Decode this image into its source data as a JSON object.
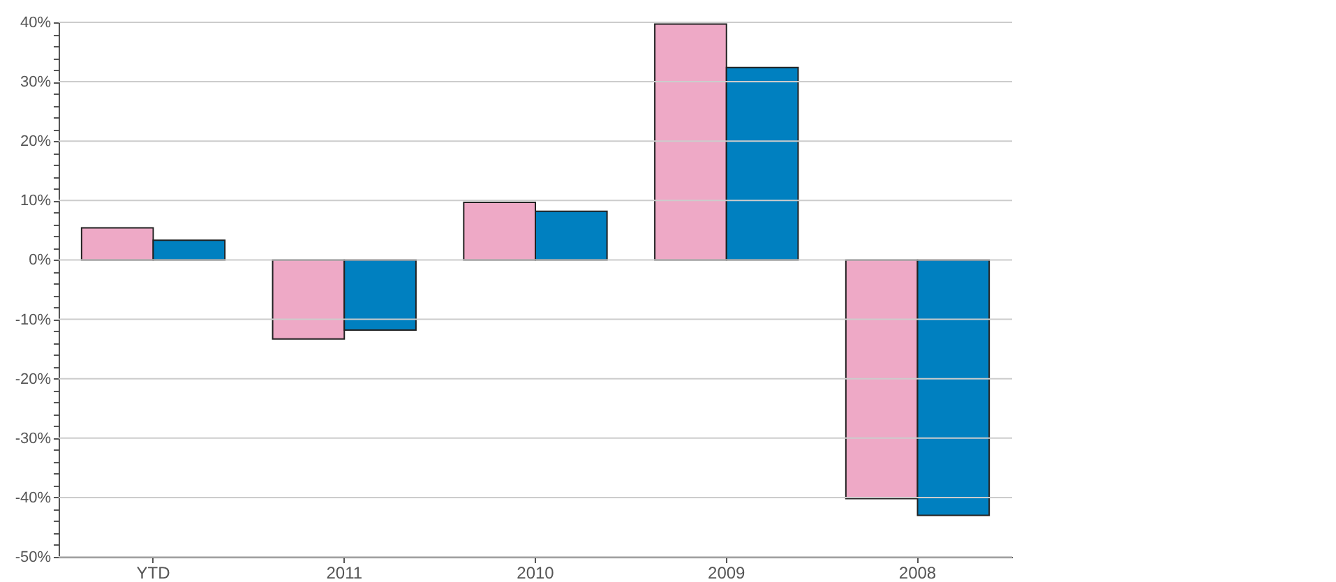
{
  "chart_data": {
    "type": "bar",
    "categories": [
      "YTD",
      "2011",
      "2010",
      "2009",
      "2008"
    ],
    "series": [
      {
        "color": "#eea9c6",
        "values": [
          5.4,
          -13.3,
          9.7,
          39.7,
          -40.2
        ]
      },
      {
        "color": "#0080c0",
        "values": [
          3.3,
          -11.8,
          8.2,
          32.4,
          -43.0
        ]
      }
    ],
    "ylim": [
      -50,
      40
    ],
    "yticks": [
      {
        "value": -50,
        "label": "-50%"
      },
      {
        "value": -48,
        "label": null
      },
      {
        "value": -46,
        "label": null
      },
      {
        "value": -44,
        "label": null
      },
      {
        "value": -42,
        "label": null
      },
      {
        "value": -40,
        "label": "-40%"
      },
      {
        "value": -38,
        "label": null
      },
      {
        "value": -36,
        "label": null
      },
      {
        "value": -34,
        "label": null
      },
      {
        "value": -32,
        "label": null
      },
      {
        "value": -30,
        "label": "-30%"
      },
      {
        "value": -28,
        "label": null
      },
      {
        "value": -26,
        "label": null
      },
      {
        "value": -24,
        "label": null
      },
      {
        "value": -22,
        "label": null
      },
      {
        "value": -20,
        "label": "-20%"
      },
      {
        "value": -18,
        "label": null
      },
      {
        "value": -16,
        "label": null
      },
      {
        "value": -14,
        "label": null
      },
      {
        "value": -12,
        "label": null
      },
      {
        "value": -10,
        "label": "-10%"
      },
      {
        "value": -8,
        "label": null
      },
      {
        "value": -6,
        "label": null
      },
      {
        "value": -4,
        "label": null
      },
      {
        "value": -2,
        "label": null
      },
      {
        "value": 0,
        "label": "0%"
      },
      {
        "value": 2,
        "label": null
      },
      {
        "value": 4,
        "label": null
      },
      {
        "value": 6,
        "label": null
      },
      {
        "value": 8,
        "label": null
      },
      {
        "value": 10,
        "label": "10%"
      },
      {
        "value": 12,
        "label": null
      },
      {
        "value": 14,
        "label": null
      },
      {
        "value": 16,
        "label": null
      },
      {
        "value": 18,
        "label": null
      },
      {
        "value": 20,
        "label": "20%"
      },
      {
        "value": 22,
        "label": null
      },
      {
        "value": 24,
        "label": null
      },
      {
        "value": 26,
        "label": null
      },
      {
        "value": 28,
        "label": null
      },
      {
        "value": 30,
        "label": "30%"
      },
      {
        "value": 32,
        "label": null
      },
      {
        "value": 34,
        "label": null
      },
      {
        "value": 36,
        "label": null
      },
      {
        "value": 38,
        "label": null
      },
      {
        "value": 40,
        "label": "40%"
      }
    ],
    "grid": "y",
    "legend": false
  }
}
